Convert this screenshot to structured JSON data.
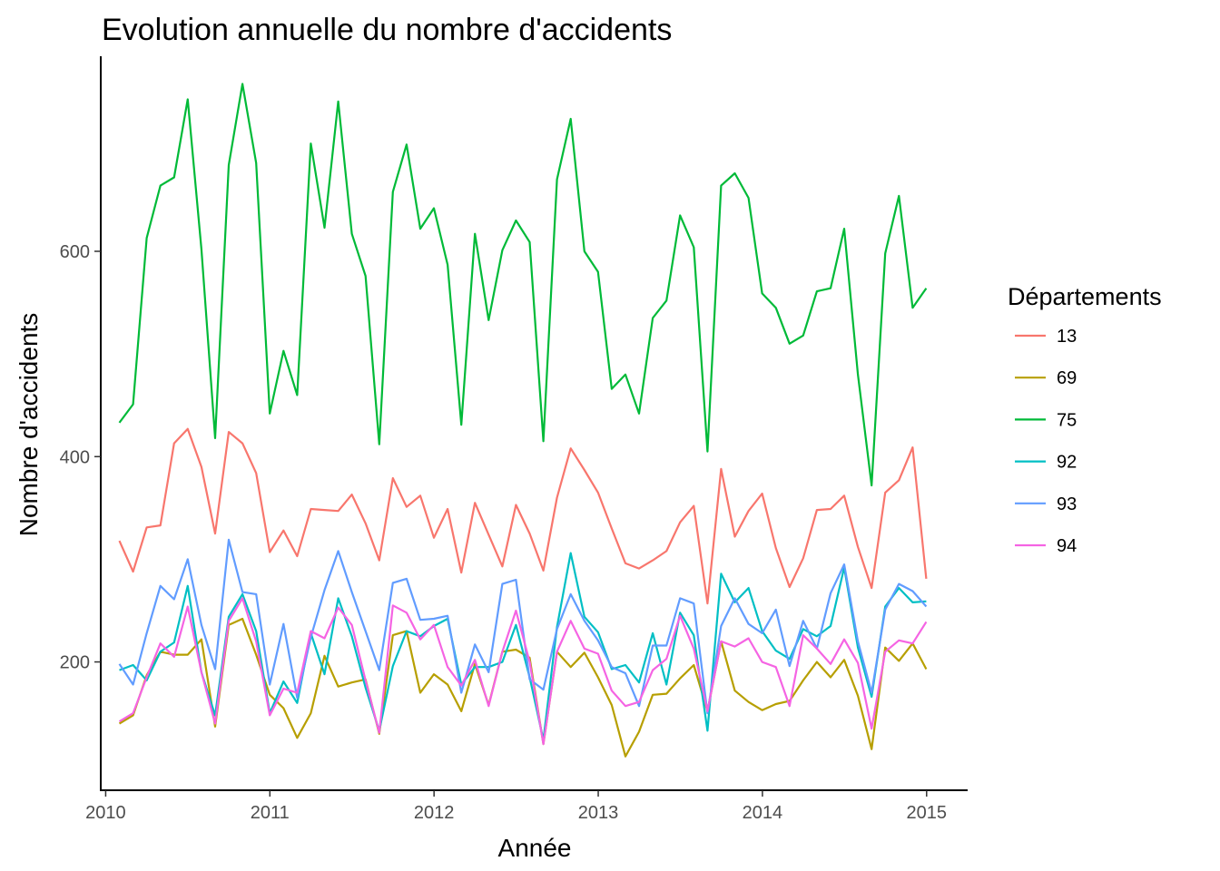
{
  "chart_data": {
    "type": "line",
    "title": "Evolution annuelle du nombre d'accidents",
    "xlabel": "Année",
    "ylabel": "Nombre d'accidents",
    "xlim": [
      2009.97,
      2015.25
    ],
    "ylim": [
      75,
      790
    ],
    "x_ticks": [
      2010,
      2011,
      2012,
      2013,
      2014,
      2015
    ],
    "x_tick_labels": [
      "2010",
      "2011",
      "2012",
      "2013",
      "2014",
      "2015"
    ],
    "y_ticks": [
      200,
      400,
      600
    ],
    "y_tick_labels": [
      "200",
      "400",
      "600"
    ],
    "grid": false,
    "legend": {
      "title": "Départements",
      "position": "right"
    },
    "x_start": 2010.0833,
    "x_step": 0.0833,
    "series": [
      {
        "name": "13",
        "color": "#F8766D",
        "values": [
          318,
          288,
          331,
          333,
          413,
          427,
          390,
          325,
          424,
          413,
          384,
          307,
          328,
          303,
          349,
          348,
          347,
          363,
          335,
          299,
          379,
          351,
          362,
          321,
          349,
          287,
          355,
          324,
          293,
          353,
          325,
          289,
          360,
          408,
          387,
          365,
          330,
          296,
          291,
          299,
          308,
          336,
          352,
          257,
          388,
          322,
          347,
          364,
          311,
          273,
          301,
          348,
          349,
          362,
          312,
          272,
          365,
          377,
          409,
          281
        ]
      },
      {
        "name": "69",
        "color": "#B79F00",
        "values": [
          140,
          148,
          187,
          210,
          207,
          207,
          222,
          137,
          236,
          242,
          207,
          168,
          155,
          126,
          150,
          206,
          176,
          180,
          183,
          130,
          226,
          230,
          170,
          188,
          178,
          152,
          198,
          158,
          210,
          212,
          204,
          120,
          210,
          195,
          209,
          185,
          158,
          108,
          132,
          168,
          169,
          184,
          197,
          152,
          220,
          172,
          161,
          153,
          159,
          162,
          182,
          200,
          185,
          202,
          167,
          115,
          214,
          201,
          218,
          193
        ]
      },
      {
        "name": "75",
        "color": "#00BA38",
        "values": [
          433,
          451,
          613,
          664,
          672,
          748,
          602,
          418,
          684,
          763,
          686,
          442,
          503,
          460,
          705,
          623,
          746,
          617,
          576,
          412,
          658,
          704,
          622,
          642,
          587,
          431,
          617,
          533,
          601,
          630,
          609,
          415,
          670,
          729,
          600,
          580,
          466,
          480,
          442,
          535,
          552,
          635,
          604,
          405,
          664,
          676,
          652,
          559,
          545,
          510,
          518,
          561,
          564,
          622,
          480,
          372,
          598,
          654,
          545,
          564
        ]
      },
      {
        "name": "92",
        "color": "#00BFC4",
        "values": [
          192,
          197,
          182,
          210,
          219,
          274,
          190,
          148,
          244,
          266,
          230,
          150,
          181,
          160,
          228,
          188,
          262,
          225,
          175,
          133,
          196,
          230,
          225,
          235,
          242,
          178,
          195,
          195,
          200,
          236,
          185,
          124,
          234,
          306,
          244,
          229,
          193,
          197,
          180,
          228,
          178,
          248,
          226,
          133,
          286,
          258,
          272,
          230,
          211,
          203,
          232,
          225,
          235,
          292,
          214,
          166,
          254,
          272,
          258,
          259
        ]
      },
      {
        "name": "93",
        "color": "#619CFF",
        "values": [
          198,
          178,
          228,
          274,
          261,
          300,
          236,
          193,
          319,
          268,
          266,
          178,
          237,
          165,
          224,
          270,
          308,
          268,
          230,
          192,
          277,
          281,
          241,
          242,
          245,
          170,
          217,
          190,
          276,
          280,
          183,
          173,
          232,
          266,
          240,
          221,
          195,
          189,
          157,
          216,
          216,
          262,
          257,
          150,
          235,
          262,
          237,
          228,
          251,
          196,
          240,
          213,
          267,
          295,
          220,
          170,
          251,
          276,
          269,
          254
        ]
      },
      {
        "name": "94",
        "color": "#F564E3",
        "values": [
          142,
          150,
          185,
          218,
          205,
          254,
          190,
          140,
          240,
          262,
          220,
          148,
          174,
          170,
          230,
          223,
          253,
          236,
          182,
          131,
          255,
          248,
          222,
          236,
          195,
          177,
          202,
          157,
          210,
          250,
          200,
          120,
          210,
          240,
          213,
          208,
          172,
          157,
          161,
          192,
          203,
          245,
          213,
          152,
          220,
          215,
          223,
          200,
          195,
          157,
          226,
          213,
          198,
          222,
          199,
          135,
          210,
          221,
          218,
          239
        ]
      }
    ]
  }
}
